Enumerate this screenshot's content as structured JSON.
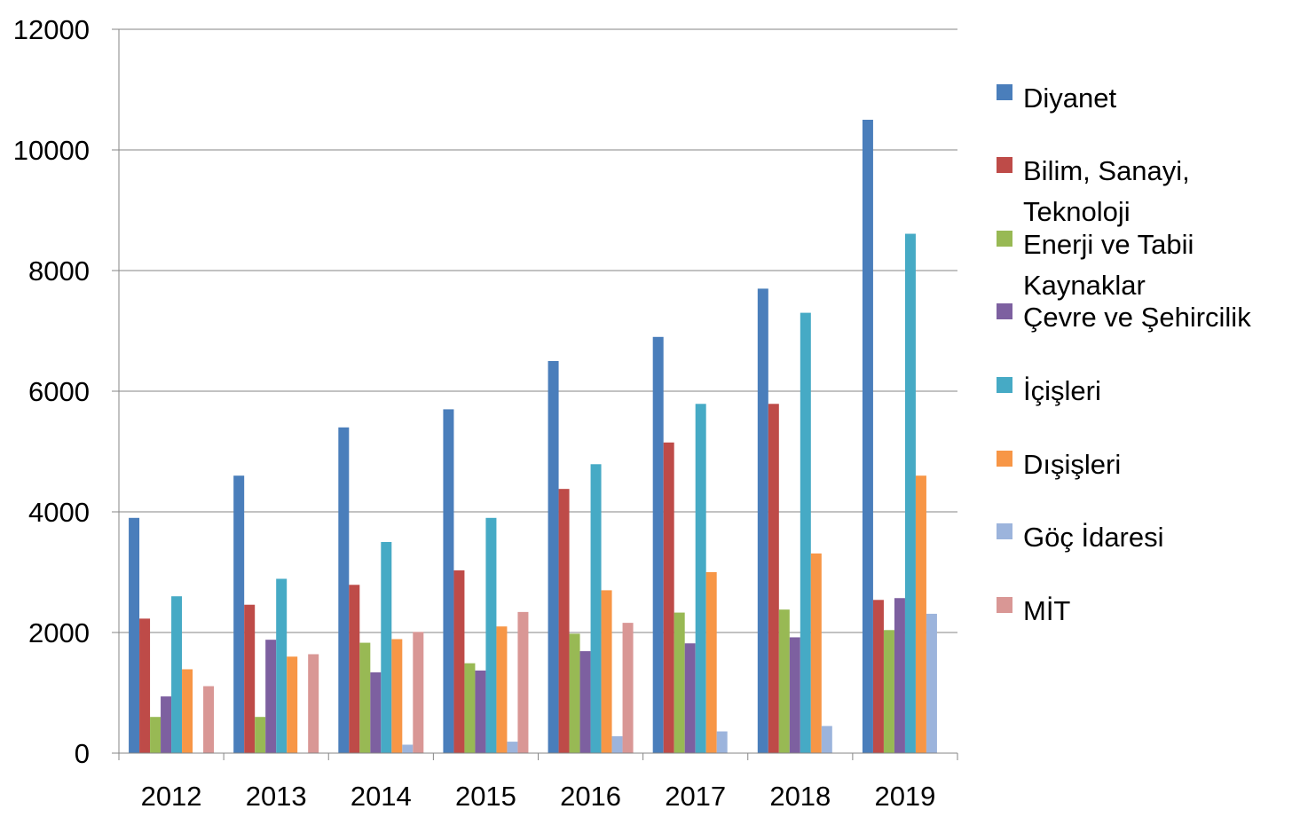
{
  "chart_data": {
    "type": "bar",
    "title": "",
    "xlabel": "",
    "ylabel": "",
    "ylim": [
      0,
      12000
    ],
    "yticks": [
      0,
      2000,
      4000,
      6000,
      8000,
      10000,
      12000
    ],
    "y_tick_labels": [
      "0",
      "2000",
      "4000",
      "6000",
      "8000",
      "10000",
      "12000"
    ],
    "grid": true,
    "legend_position": "right",
    "categories": [
      "2012",
      "2013",
      "2014",
      "2015",
      "2016",
      "2017",
      "2018",
      "2019"
    ],
    "series": [
      {
        "name": "Diyanet",
        "color": "#4a7ebb",
        "values": [
          3900,
          4600,
          5400,
          5700,
          6500,
          6900,
          7700,
          10500
        ]
      },
      {
        "name": "Bilim, Sanayi, Teknoloji",
        "color": "#be4b48",
        "values": [
          2230,
          2460,
          2790,
          3030,
          4380,
          5150,
          5790,
          2540
        ]
      },
      {
        "name": "Enerji ve Tabii Kaynaklar",
        "color": "#98b954",
        "values": [
          600,
          600,
          1830,
          1490,
          1980,
          2330,
          2380,
          2040
        ]
      },
      {
        "name": "Çevre ve Şehircilik",
        "color": "#7d60a0",
        "values": [
          940,
          1880,
          1340,
          1370,
          1690,
          1820,
          1920,
          2570
        ]
      },
      {
        "name": "İçişleri",
        "color": "#46aac5",
        "values": [
          2600,
          2890,
          3500,
          3900,
          4790,
          5790,
          7300,
          8610
        ]
      },
      {
        "name": "Dışişleri",
        "color": "#f79646",
        "values": [
          1390,
          1600,
          1890,
          2100,
          2700,
          3000,
          3310,
          4600
        ]
      },
      {
        "name": "Göç İdaresi",
        "color": "#9cb4dc",
        "values": [
          0,
          0,
          140,
          190,
          280,
          360,
          450,
          2310
        ]
      },
      {
        "name": "MİT",
        "color": "#d99795",
        "values": [
          1110,
          1640,
          2010,
          2340,
          2160,
          0,
          0,
          0
        ]
      }
    ]
  }
}
